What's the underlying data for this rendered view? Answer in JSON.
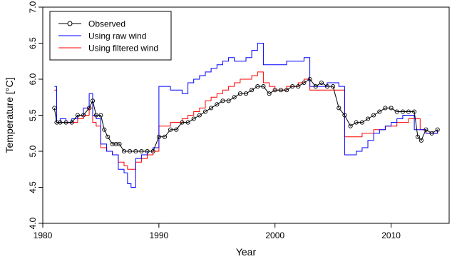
{
  "chart_data": {
    "type": "line",
    "xlabel": "Year",
    "ylabel": "Temperature [°C]",
    "xlim": [
      1980,
      2015
    ],
    "ylim": [
      4.0,
      7.0
    ],
    "x_ticks": [
      1980,
      1990,
      2000,
      2010
    ],
    "y_ticks": [
      4.0,
      4.5,
      5.0,
      5.5,
      6.0,
      6.5,
      7.0
    ],
    "grid": false,
    "legend_position": "top-left",
    "series": [
      {
        "name": "Observed",
        "color": "#000000",
        "marker": "open-circle",
        "x": [
          1981.0,
          1981.2,
          1981.5,
          1982.0,
          1982.5,
          1983.0,
          1983.5,
          1984.0,
          1984.3,
          1984.6,
          1985.0,
          1985.3,
          1985.6,
          1986.0,
          1986.3,
          1986.6,
          1987.0,
          1987.5,
          1988.0,
          1988.5,
          1989.0,
          1989.5,
          1990.0,
          1990.5,
          1991.0,
          1991.5,
          1992.0,
          1992.5,
          1993.0,
          1993.5,
          1994.0,
          1994.5,
          1995.0,
          1995.5,
          1996.0,
          1996.5,
          1997.0,
          1997.5,
          1998.0,
          1998.5,
          1999.0,
          1999.5,
          2000.0,
          2000.5,
          2001.0,
          2001.5,
          2002.0,
          2002.5,
          2003.0,
          2003.5,
          2004.0,
          2004.5,
          2005.0,
          2005.5,
          2006.0,
          2006.5,
          2007.0,
          2007.5,
          2008.0,
          2008.5,
          2009.0,
          2009.5,
          2010.0,
          2010.5,
          2011.0,
          2011.5,
          2012.0,
          2012.3,
          2012.6,
          2013.0,
          2013.5,
          2014.0
        ],
        "values": [
          5.6,
          5.4,
          5.4,
          5.4,
          5.4,
          5.5,
          5.5,
          5.6,
          5.7,
          5.5,
          5.5,
          5.3,
          5.2,
          5.1,
          5.1,
          5.1,
          5.0,
          5.0,
          5.0,
          5.0,
          5.0,
          5.0,
          5.2,
          5.2,
          5.3,
          5.3,
          5.4,
          5.4,
          5.45,
          5.5,
          5.55,
          5.6,
          5.65,
          5.7,
          5.7,
          5.75,
          5.8,
          5.8,
          5.85,
          5.9,
          5.9,
          5.8,
          5.85,
          5.85,
          5.85,
          5.9,
          5.9,
          5.95,
          6.0,
          5.9,
          5.95,
          5.9,
          5.9,
          5.6,
          5.5,
          5.35,
          5.4,
          5.4,
          5.45,
          5.5,
          5.55,
          5.6,
          5.6,
          5.55,
          5.55,
          5.55,
          5.55,
          5.2,
          5.15,
          5.3,
          5.25,
          5.3
        ]
      },
      {
        "name": "Using raw wind",
        "color": "#0000ff",
        "x": [
          1981.0,
          1981.2,
          1981.5,
          1982.0,
          1982.5,
          1983.0,
          1983.5,
          1984.0,
          1984.3,
          1984.6,
          1985.0,
          1985.5,
          1986.0,
          1986.5,
          1987.0,
          1987.3,
          1987.6,
          1988.0,
          1988.5,
          1989.0,
          1989.5,
          1990.0,
          1990.5,
          1991.0,
          1991.5,
          1992.0,
          1992.5,
          1993.0,
          1993.5,
          1994.0,
          1994.5,
          1995.0,
          1995.5,
          1996.0,
          1996.5,
          1997.0,
          1997.5,
          1998.0,
          1998.5,
          1999.0,
          1999.5,
          2000.0,
          2000.5,
          2001.0,
          2001.5,
          2002.0,
          2002.5,
          2003.0,
          2003.5,
          2004.0,
          2004.5,
          2005.0,
          2005.5,
          2006.0,
          2006.5,
          2007.0,
          2007.5,
          2008.0,
          2008.5,
          2009.0,
          2009.5,
          2010.0,
          2010.5,
          2011.0,
          2011.5,
          2012.0,
          2012.5,
          2013.0,
          2013.5,
          2014.0
        ],
        "values": [
          5.9,
          5.4,
          5.45,
          5.4,
          5.45,
          5.5,
          5.6,
          5.8,
          5.5,
          5.45,
          5.1,
          5.0,
          4.95,
          4.75,
          4.7,
          4.55,
          4.5,
          4.9,
          4.95,
          5.0,
          5.05,
          5.9,
          5.9,
          5.85,
          5.85,
          5.8,
          5.95,
          6.0,
          6.05,
          6.1,
          6.15,
          6.2,
          6.25,
          6.3,
          6.25,
          6.25,
          6.3,
          6.4,
          6.5,
          6.2,
          6.2,
          6.2,
          6.2,
          6.25,
          6.25,
          6.25,
          6.3,
          5.9,
          5.9,
          5.9,
          5.95,
          5.95,
          5.9,
          4.95,
          4.95,
          5.0,
          5.05,
          5.15,
          5.25,
          5.3,
          5.35,
          5.4,
          5.45,
          5.5,
          5.5,
          5.3,
          5.3,
          5.25,
          5.25,
          5.3
        ]
      },
      {
        "name": "Using filtered wind",
        "color": "#ff0000",
        "x": [
          1981.0,
          1981.2,
          1981.5,
          1982.0,
          1982.5,
          1983.0,
          1983.5,
          1984.0,
          1984.3,
          1984.6,
          1985.0,
          1985.5,
          1986.0,
          1986.5,
          1987.0,
          1987.3,
          1987.6,
          1988.0,
          1988.5,
          1989.0,
          1989.5,
          1990.0,
          1990.5,
          1991.0,
          1991.5,
          1992.0,
          1992.5,
          1993.0,
          1993.5,
          1994.0,
          1994.5,
          1995.0,
          1995.5,
          1996.0,
          1996.5,
          1997.0,
          1997.5,
          1998.0,
          1998.5,
          1999.0,
          1999.5,
          2000.0,
          2000.5,
          2001.0,
          2001.5,
          2002.0,
          2002.5,
          2003.0,
          2003.5,
          2004.0,
          2004.5,
          2005.0,
          2005.5,
          2006.0,
          2006.5,
          2007.0,
          2007.5,
          2008.0,
          2008.5,
          2009.0,
          2009.5,
          2010.0,
          2010.5,
          2011.0,
          2011.5,
          2012.0,
          2012.5,
          2013.0,
          2013.5,
          2014.0
        ],
        "values": [
          5.85,
          5.4,
          5.4,
          5.4,
          5.4,
          5.45,
          5.5,
          5.6,
          5.4,
          5.35,
          5.05,
          5.0,
          4.95,
          4.85,
          4.8,
          4.75,
          4.75,
          4.85,
          4.9,
          4.95,
          5.0,
          5.35,
          5.35,
          5.4,
          5.4,
          5.45,
          5.5,
          5.55,
          5.6,
          5.7,
          5.75,
          5.8,
          5.85,
          5.9,
          5.95,
          6.0,
          6.0,
          6.05,
          6.1,
          5.95,
          5.9,
          5.85,
          5.85,
          5.9,
          5.9,
          5.95,
          6.0,
          5.85,
          5.85,
          5.85,
          5.85,
          5.85,
          5.85,
          5.2,
          5.2,
          5.2,
          5.25,
          5.25,
          5.3,
          5.3,
          5.35,
          5.35,
          5.4,
          5.4,
          5.45,
          5.45,
          5.3,
          5.25,
          5.25,
          5.3
        ]
      }
    ]
  }
}
